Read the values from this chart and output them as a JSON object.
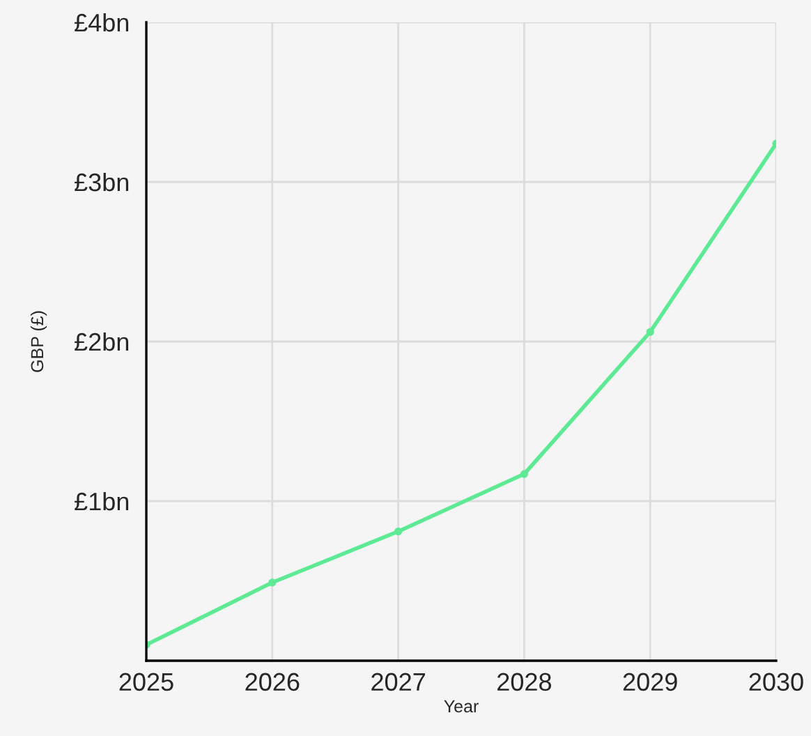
{
  "chart_data": {
    "type": "line",
    "xlabel": "Year",
    "ylabel": "GBP (£)",
    "x": [
      2025,
      2026,
      2027,
      2028,
      2029,
      2030
    ],
    "series": [
      {
        "color": "#5eea94",
        "values": [
          0.1,
          0.49,
          0.81,
          1.17,
          2.06,
          3.24
        ]
      }
    ],
    "xlim": [
      2025,
      2030
    ],
    "ylim": [
      0,
      4
    ],
    "xticks": [
      2025,
      2026,
      2027,
      2028,
      2029,
      2030
    ],
    "yticks": [
      {
        "value": 0,
        "label": null
      },
      {
        "value": 1,
        "label": "£1bn"
      },
      {
        "value": 2,
        "label": "£2bn"
      },
      {
        "value": 3,
        "label": "£3bn"
      },
      {
        "value": 4,
        "label": "£4bn"
      }
    ],
    "grid": true,
    "marker": "circle",
    "line_style": "solid"
  }
}
